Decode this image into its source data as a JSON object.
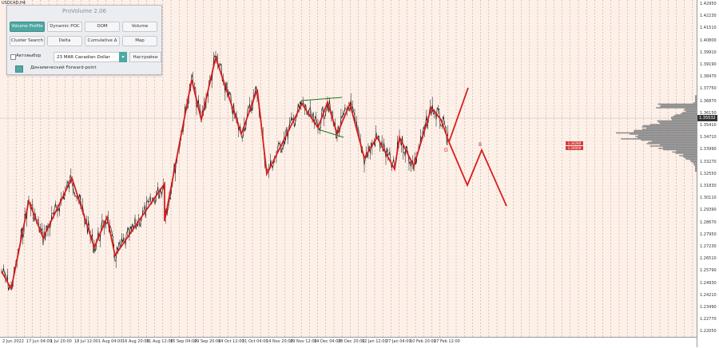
{
  "symbol": "USDCAD,H4",
  "current_price": "1.35532",
  "price_levels": [
    "1.42950",
    "1.42230",
    "1.41510",
    "1.40800",
    "1.39910",
    "1.39190",
    "1.38470",
    "1.37750",
    "1.36870",
    "1.36150",
    "1.35410",
    "1.34710",
    "1.33990",
    "1.33270",
    "1.32550",
    "1.31830",
    "1.30110",
    "1.29390",
    "1.28670",
    "1.27950",
    "1.27230",
    "1.26510",
    "1.25790",
    "1.24930",
    "1.24210",
    "1.23490",
    "1.22770",
    "1.22050"
  ],
  "time_labels": [
    "2 Jun 2022",
    "17 Jun 04:00",
    "1 Jul 20:00",
    "18 Jul 12:00",
    "1 Aug 04:00",
    "16 Aug 20:00",
    "31 Aug 12:00",
    "15 Sep 04:00",
    "29 Sep 20:00",
    "14 Oct 12:00",
    "31 Oct 04:00",
    "14 Nov 20:00",
    "29 Nov 12:00",
    "14 Dec 04:00",
    "28 Dec 20:00",
    "12 Jan 12:00",
    "27 Jan 04:00",
    "10 Feb 20:00",
    "27 Feb 12:00"
  ],
  "level_boxes": [
    "1.34280",
    "1.34000"
  ],
  "projection_labels": [
    "B",
    "D"
  ],
  "panel": {
    "title": "ProVolume 2.06",
    "buttons": [
      "Volume Profile",
      "Dynamic POC",
      "DOM",
      "Volume",
      "Cluster Search",
      "Delta",
      "Cumulative Δ",
      "Map"
    ],
    "auto_label": "Автовыбор",
    "contract": "23 MAR Canadian Dollar",
    "settings_label": "Настройки",
    "forward_label": "Динамический Forward-point"
  },
  "colors": {
    "zigzag": "#d81e1e",
    "volume": "#8c8c8c",
    "accent": "#4ea7a3",
    "background": "#fdf0e8"
  },
  "icons": {
    "select_arrow": "chevron-down-icon",
    "forward": "square-icon"
  }
}
